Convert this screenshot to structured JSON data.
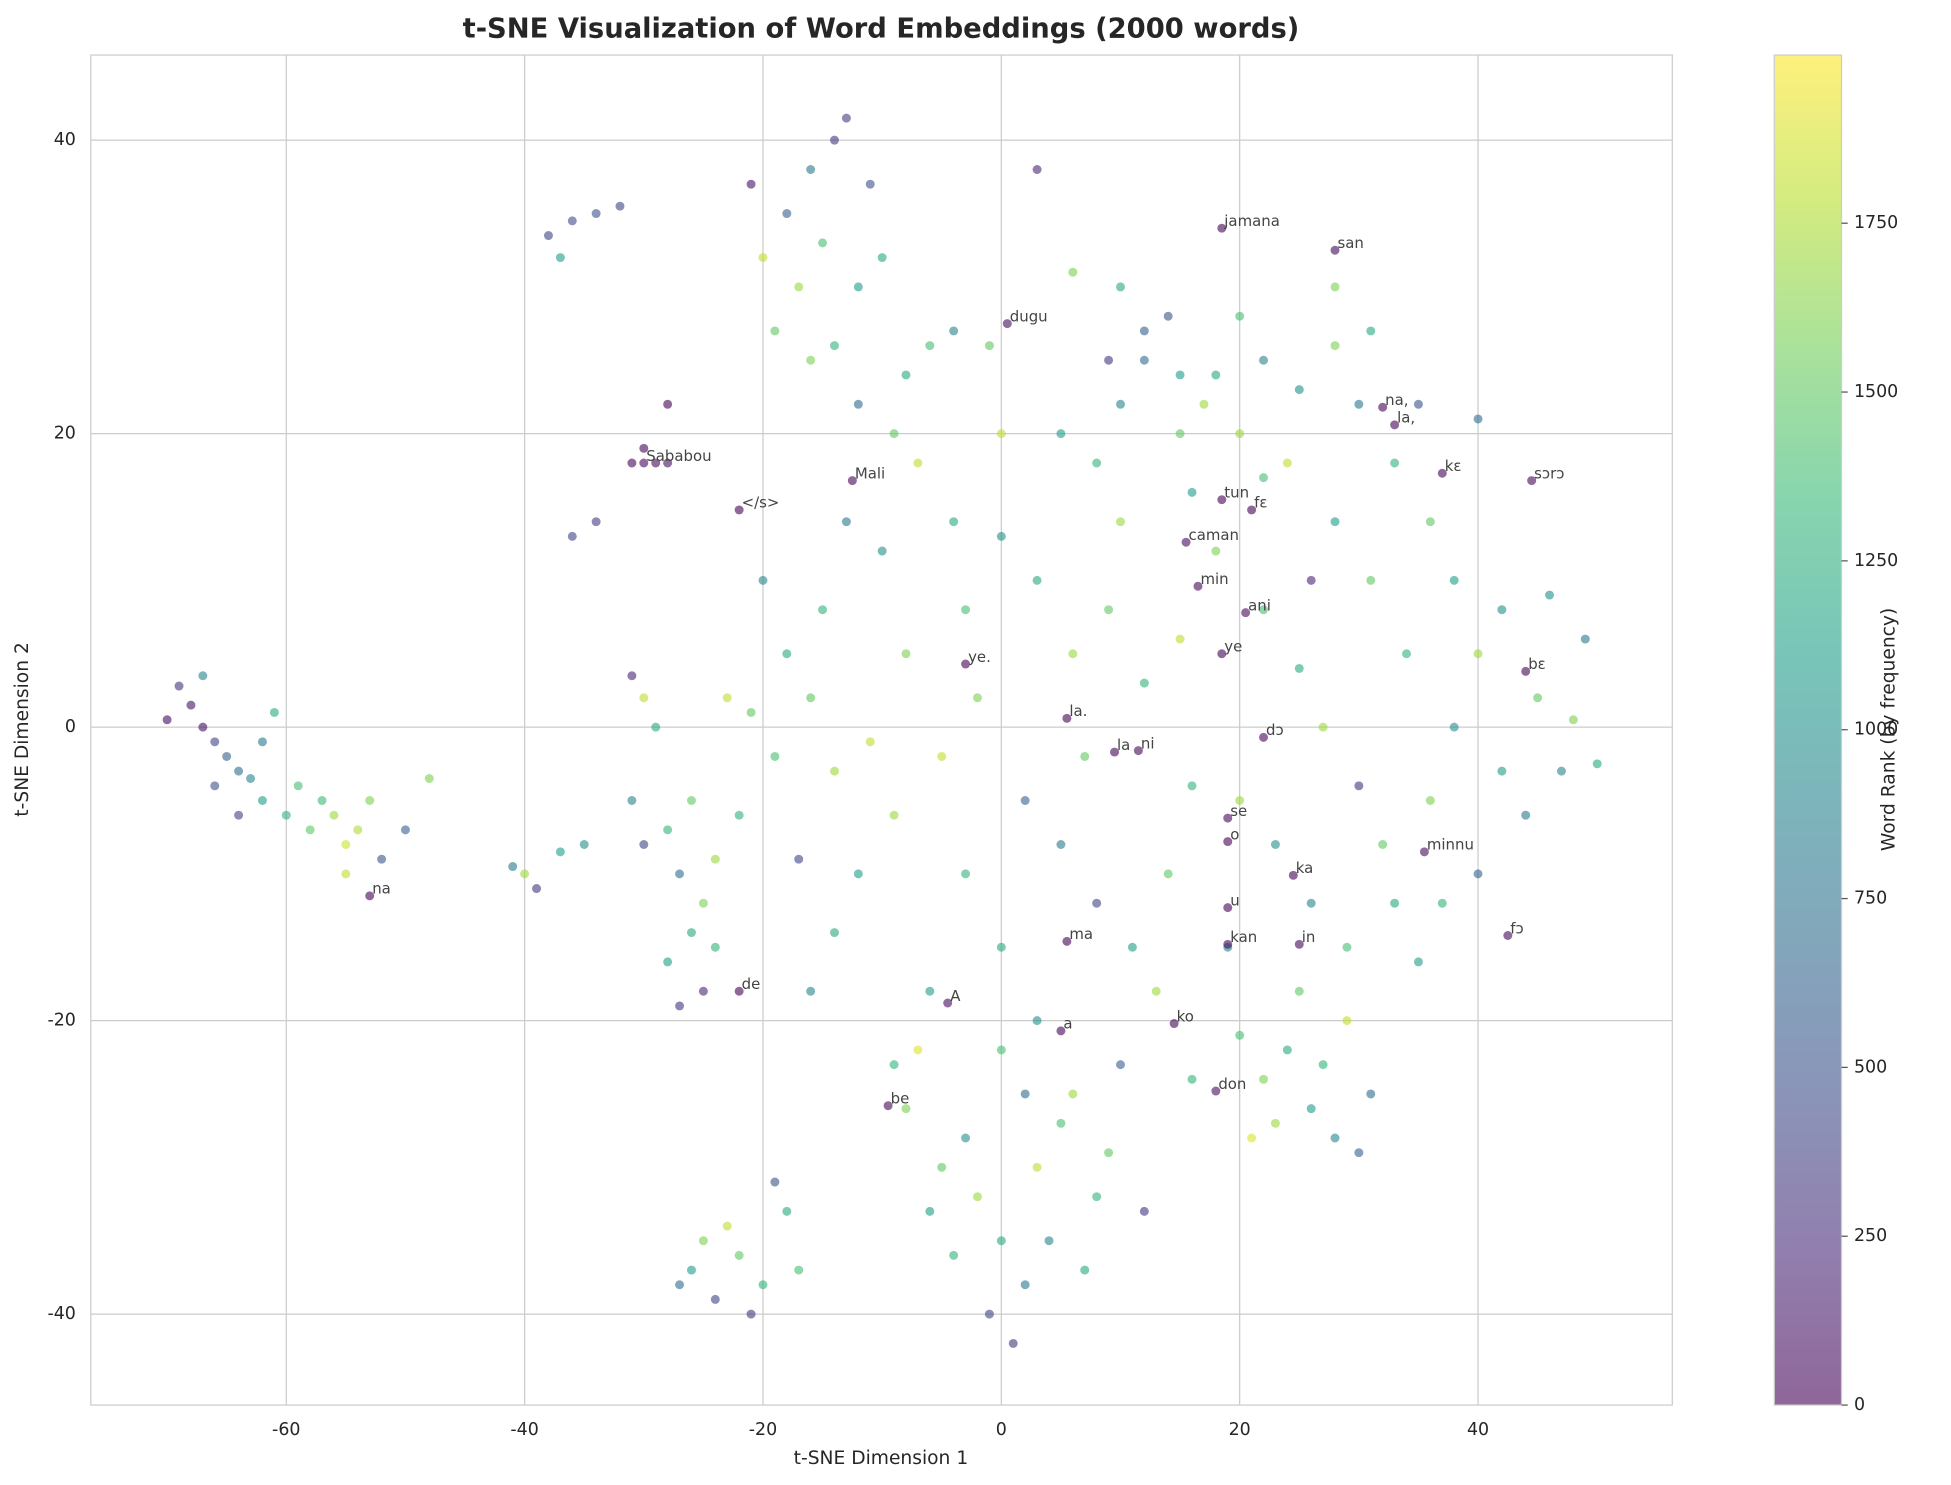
{
  "chart_data": {
    "type": "scatter",
    "title": "t-SNE Visualization of Word Embeddings (2000 words)",
    "xlabel": "t-SNE Dimension 1",
    "ylabel": "t-SNE Dimension 2",
    "xlim": [
      -76.4,
      56.3
    ],
    "ylim": [
      -46.2,
      45.8
    ],
    "xticks": [
      -60,
      -40,
      -20,
      0,
      20,
      40
    ],
    "yticks": [
      -40,
      -20,
      0,
      20,
      40
    ],
    "grid": true,
    "colormap": "viridis",
    "colorbar": {
      "label": "Word Rank (by frequency)",
      "clim": [
        0,
        1999
      ],
      "ticks": [
        0,
        250,
        500,
        750,
        1000,
        1250,
        1500,
        1750
      ]
    },
    "points": {
      "x": [
        -70,
        -69,
        -68,
        -67,
        -66,
        -65,
        -64,
        -63,
        -62,
        -61,
        -60,
        -59,
        -58,
        -57,
        -56,
        -55,
        -54,
        -53,
        -52,
        -50,
        -48,
        -55,
        -66,
        -62,
        -67,
        -64,
        -38,
        -36,
        -34,
        -32,
        -37,
        -36,
        -34,
        -31,
        -30,
        -29,
        -28,
        -28,
        -41,
        -40,
        -39,
        -37,
        -35,
        -31,
        -30,
        -29,
        -31,
        -28,
        -26,
        -24,
        -27,
        -25,
        -30,
        -28,
        -27,
        -25,
        -26,
        -24,
        -18,
        -16,
        -14,
        -13,
        -15,
        -17,
        -12,
        -19,
        -14,
        -10,
        -11,
        -20,
        -16,
        -12,
        -8,
        -6,
        -4,
        -21,
        -9,
        -7,
        -20,
        -18,
        -16,
        -14,
        -17,
        -12,
        -15,
        -10,
        -8,
        -11,
        -19,
        -13,
        -9,
        -14,
        -16,
        -22,
        -21,
        -23,
        -26,
        -24,
        -22,
        -20,
        -23,
        -18,
        -21,
        -25,
        -17,
        -19,
        -27,
        -5,
        -2,
        0,
        2,
        -1,
        1,
        -4,
        3,
        5,
        -8,
        -6,
        4,
        7,
        -3,
        6,
        9,
        -9,
        -7,
        0,
        2,
        10,
        12,
        8,
        20,
        22,
        24,
        26,
        28,
        30,
        23,
        27,
        29,
        31,
        25,
        21,
        5,
        8,
        10,
        12,
        15,
        18,
        20,
        22,
        25,
        28,
        30,
        33,
        36,
        38,
        40,
        42,
        45,
        47,
        50,
        48,
        44,
        40,
        37,
        35,
        32,
        30,
        27,
        25,
        22,
        18,
        15,
        12,
        9,
        6,
        3,
        0,
        -3,
        2,
        5,
        8,
        11,
        14,
        16,
        20,
        23,
        26,
        29,
        33,
        36,
        38,
        34,
        31,
        28,
        24,
        20,
        22,
        28,
        31,
        35,
        40,
        26,
        16,
        10,
        7,
        -2,
        -5,
        -3,
        0,
        3,
        -6,
        13,
        16,
        19,
        42,
        46,
        49,
        3,
        -1,
        6,
        10,
        12,
        15,
        9,
        0,
        -4,
        14,
        17
      ],
      "y": [
        0.5,
        2.8,
        1.5,
        0,
        -1,
        -2,
        -3,
        -3.5,
        -5,
        1,
        -6,
        -4,
        -7,
        -5,
        -6,
        -8,
        -7,
        -5,
        -9,
        -7,
        -3.5,
        -10,
        -4,
        -1,
        3.5,
        -6,
        33.5,
        34.5,
        35,
        35.5,
        32,
        13,
        14,
        18,
        19,
        18,
        22,
        18,
        -9.5,
        -10,
        -11,
        -8.5,
        -8,
        3.5,
        2,
        0,
        -5,
        -7,
        -5,
        -9,
        -10,
        -12,
        -8,
        -16,
        -19,
        -18,
        -14,
        -15,
        35,
        38,
        40,
        41.5,
        33,
        30,
        30,
        27,
        26,
        32,
        37,
        32,
        25,
        22,
        24,
        26,
        27,
        37,
        20,
        18,
        10,
        5,
        2,
        -3,
        -9,
        -10,
        8,
        12,
        5,
        -1,
        -2,
        14,
        -6,
        -14,
        -18,
        -6,
        1,
        2,
        -37,
        -39,
        -36,
        -38,
        -34,
        -33,
        -40,
        -35,
        -37,
        -31,
        -38,
        -30,
        -32,
        -35,
        -38,
        -40,
        -42,
        -36,
        -30,
        -27,
        -26,
        -33,
        -35,
        -37,
        -28,
        -25,
        -29,
        -23,
        -22,
        -22,
        -25,
        -23,
        -33,
        -32,
        -21,
        -24,
        -22,
        -26,
        -28,
        -29,
        -27,
        -23,
        -20,
        -25,
        -18,
        -28,
        20,
        18,
        22,
        25,
        20,
        24,
        20,
        17,
        23,
        26,
        22,
        18,
        14,
        10,
        5,
        8,
        2,
        -3,
        -2.5,
        0.5,
        -6,
        -10,
        -12,
        -16,
        -8,
        -4,
        0,
        4,
        8,
        12,
        6,
        3,
        8,
        5,
        10,
        13,
        8,
        -5,
        -8,
        -12,
        -15,
        -10,
        -4,
        -5,
        -8,
        -12,
        -15,
        -12,
        -5,
        0,
        5,
        10,
        14,
        18,
        28,
        25,
        30,
        27,
        22,
        21,
        10,
        16,
        14,
        -2,
        2,
        -2,
        -10,
        -15,
        -20,
        -18,
        -18,
        -24,
        -15,
        -3,
        9,
        6,
        38,
        26,
        31,
        30,
        27,
        24,
        25,
        20,
        14,
        28,
        22
      ],
      "rank": [
        50,
        300,
        100,
        80,
        400,
        600,
        700,
        900,
        1100,
        1200,
        1300,
        1400,
        1500,
        1350,
        1700,
        1850,
        1750,
        1600,
        500,
        600,
        1600,
        1800,
        500,
        800,
        900,
        400,
        400,
        450,
        500,
        420,
        1100,
        400,
        350,
        30,
        20,
        40,
        10,
        60,
        800,
        1700,
        300,
        1100,
        1000,
        200,
        1800,
        1200,
        900,
        1300,
        1500,
        1700,
        700,
        1600,
        400,
        1100,
        300,
        200,
        1200,
        1300,
        600,
        800,
        300,
        350,
        1400,
        1700,
        1100,
        1500,
        1300,
        1200,
        500,
        1800,
        1600,
        700,
        1200,
        1400,
        900,
        100,
        1500,
        1800,
        900,
        1200,
        1500,
        1700,
        400,
        1100,
        1300,
        1000,
        1600,
        1800,
        1400,
        800,
        1700,
        1200,
        900,
        1300,
        1500,
        1800,
        1100,
        400,
        1500,
        1300,
        1800,
        1200,
        300,
        1600,
        1400,
        500,
        700,
        1500,
        1700,
        1200,
        800,
        400,
        300,
        1300,
        1800,
        1400,
        1600,
        1100,
        900,
        1200,
        1000,
        1700,
        1500,
        1300,
        1900,
        1400,
        700,
        600,
        300,
        1300,
        1400,
        1600,
        1200,
        1100,
        900,
        600,
        1700,
        1300,
        1800,
        700,
        1500,
        1900,
        1100,
        1300,
        900,
        700,
        1500,
        1200,
        1700,
        1400,
        1000,
        1600,
        800,
        1300,
        1500,
        1100,
        1700,
        1000,
        1500,
        900,
        1200,
        1600,
        800,
        600,
        1300,
        1100,
        1500,
        300,
        1700,
        1200,
        1400,
        1600,
        1800,
        1300,
        1500,
        1700,
        1200,
        1000,
        1400,
        600,
        800,
        400,
        1100,
        1500,
        1300,
        1700,
        1000,
        900,
        1400,
        1200,
        1600,
        1000,
        1300,
        1500,
        1100,
        1800,
        1400,
        900,
        1600,
        1200,
        500,
        700,
        200,
        1100,
        1700,
        1500,
        1600,
        1800,
        1300,
        1200,
        1000,
        1100,
        1700,
        1300,
        900,
        1100,
        1000,
        800,
        200,
        1500,
        1600,
        1200,
        600,
        1100,
        300,
        1800,
        1200,
        500,
        1700
      ]
    },
    "words": {
      "labels": [
        "jamana",
        "san",
        "dugu",
        "na,",
        "la,",
        "kɛ",
        "sɔrɔ",
        "Sababou",
        "Mali",
        "</s>",
        "tun",
        "fɛ",
        "caman",
        "min",
        "ani",
        "ye",
        "bɛ",
        "ye.",
        "la.",
        "dɔ",
        "la",
        "ni",
        "se",
        "o",
        "ka",
        "minnu",
        "u",
        "kan",
        "in",
        "fɔ",
        "ma",
        "A",
        "de",
        "a",
        "ko",
        "don",
        "be",
        "na"
      ],
      "x": [
        18.5,
        28,
        0.5,
        32,
        33,
        37,
        44.5,
        -30,
        -12.5,
        -22,
        18.5,
        21,
        15.5,
        16.5,
        20.5,
        18.5,
        44,
        -3,
        5.5,
        22,
        9.5,
        11.5,
        19,
        19,
        24.5,
        35.5,
        19,
        19,
        25,
        42.5,
        5.5,
        -4.5,
        -22,
        5,
        14.5,
        18,
        -9.5,
        -53
      ],
      "y": [
        34,
        32.5,
        27.5,
        21.8,
        20.6,
        17.3,
        16.8,
        18,
        16.8,
        14.8,
        15.5,
        14.8,
        12.6,
        9.6,
        7.8,
        5,
        3.8,
        4.3,
        0.6,
        -0.7,
        -1.7,
        -1.6,
        -6.2,
        -7.8,
        -10.1,
        -8.5,
        -12.3,
        -14.8,
        -14.8,
        -14.2,
        -14.6,
        -18.8,
        -18,
        -20.7,
        -20.2,
        -24.8,
        -25.8,
        -11.5
      ],
      "rank": [
        20,
        40,
        60,
        5,
        8,
        10,
        30,
        50,
        25,
        0,
        12,
        15,
        70,
        35,
        45,
        3,
        18,
        6,
        9,
        22,
        2,
        28,
        33,
        4,
        1,
        55,
        7,
        38,
        42,
        48,
        11,
        65,
        13,
        14,
        16,
        58,
        26,
        19
      ]
    }
  }
}
